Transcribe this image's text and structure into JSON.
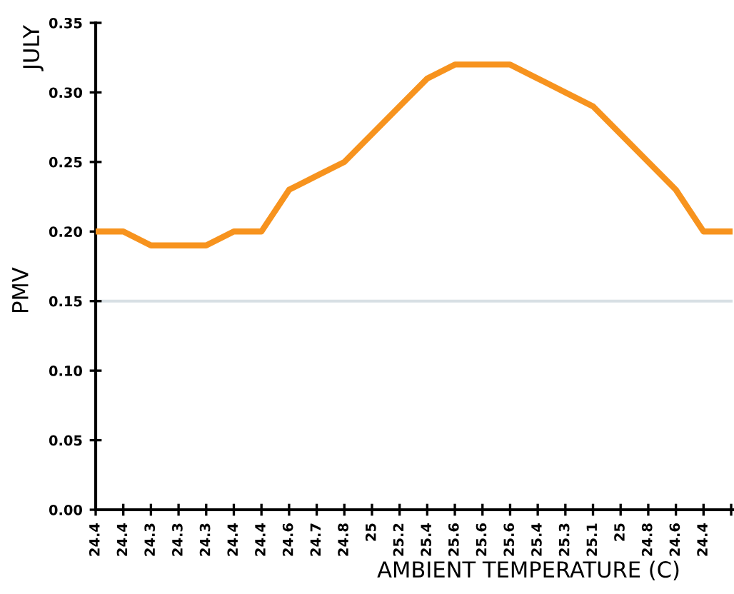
{
  "chart_data": {
    "type": "line",
    "xlabel": "AMBIENT TEMPERATURE (C)",
    "ylabel": "PMV",
    "annotations": [
      "JULY"
    ],
    "categories": [
      "24.4",
      "24.4",
      "24.3",
      "24.3",
      "24.3",
      "24.4",
      "24.4",
      "24.6",
      "24.7",
      "24.8",
      "25",
      "25.2",
      "25.4",
      "25.6",
      "25.6",
      "25.6",
      "25.4",
      "25.3",
      "25.1",
      "25",
      "24.8",
      "24.6",
      "24.4",
      null
    ],
    "series": [
      {
        "color": "#f7931e",
        "values": [
          0.2,
          0.2,
          0.19,
          0.19,
          0.19,
          0.2,
          0.2,
          0.23,
          0.24,
          0.25,
          0.27,
          0.29,
          0.31,
          0.32,
          0.32,
          0.32,
          0.31,
          0.3,
          0.29,
          0.27,
          0.25,
          0.23,
          0.2,
          0.2
        ]
      }
    ],
    "ylim": [
      0,
      0.35
    ],
    "yticks": [
      {
        "value": 0,
        "label": "0.00"
      },
      {
        "value": 0.05,
        "label": "0.05"
      },
      {
        "value": 0.1,
        "label": "0.10"
      },
      {
        "value": 0.15,
        "label": "0.15"
      },
      {
        "value": 0.2,
        "label": "0.20"
      },
      {
        "value": 0.25,
        "label": "0.25"
      },
      {
        "value": 0.3,
        "label": "0.30"
      },
      {
        "value": 0.35,
        "label": "0.35"
      }
    ],
    "ref_lines": [
      {
        "axis": "y",
        "value": 0.15,
        "color": "#d8e0e4"
      }
    ],
    "grid": false,
    "legend": false,
    "marker": "none",
    "line_style": "solid"
  }
}
